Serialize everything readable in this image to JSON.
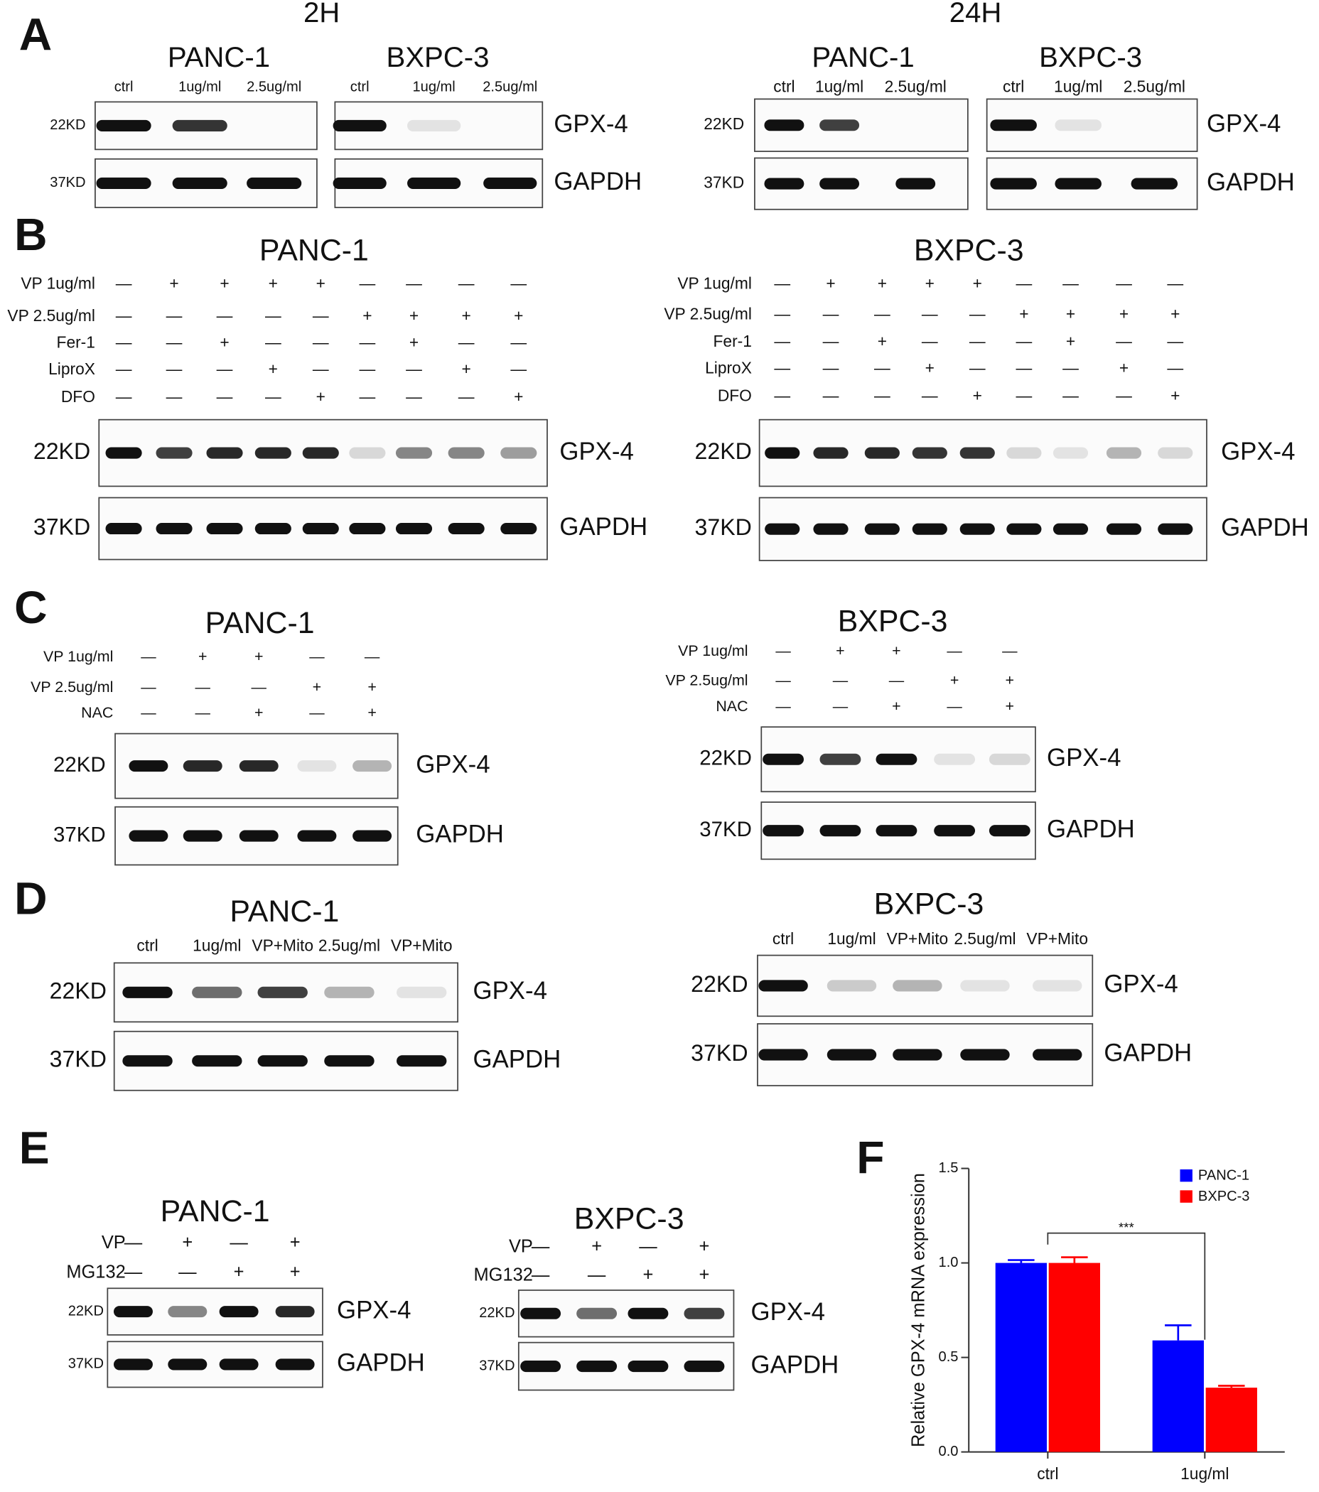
{
  "figure": {
    "panels": [
      {
        "letter": "A",
        "headers": [
          "2H",
          "24H"
        ],
        "blots": [
          {
            "cell": "PANC-1",
            "lanes": [
              "ctrl",
              "1ug/ml",
              "2.5ug/ml"
            ],
            "rows": [
              {
                "kd": "22KD"
              },
              {
                "kd": "37KD"
              }
            ]
          },
          {
            "cell": "BXPC-3",
            "lanes": [
              "ctrl",
              "1ug/ml",
              "2.5ug/ml"
            ],
            "rows": [
              {
                "protein": "GPX-4"
              },
              {
                "protein": "GAPDH"
              }
            ]
          },
          {
            "cell": "PANC-1",
            "lanes": [
              "ctrl",
              "1ug/ml",
              "2.5ug/ml"
            ],
            "rows": [
              {
                "kd": "22KD"
              },
              {
                "kd": "37KD"
              }
            ]
          },
          {
            "cell": "BXPC-3",
            "lanes": [
              "ctrl",
              "1ug/ml",
              "2.5ug/ml"
            ],
            "rows": [
              {
                "protein": "GPX-4"
              },
              {
                "protein": "GAPDH"
              }
            ]
          }
        ]
      },
      {
        "letter": "B",
        "blots": [
          {
            "cell": "PANC-1",
            "conditions": [
              {
                "label": "VP 1ug/ml",
                "signs": [
                  "—",
                  "+",
                  "+",
                  "+",
                  "+",
                  "—",
                  "—",
                  "—",
                  "—"
                ]
              },
              {
                "label": "VP 2.5ug/ml",
                "signs": [
                  "—",
                  "—",
                  "—",
                  "—",
                  "—",
                  "+",
                  "+",
                  "+",
                  "+"
                ]
              },
              {
                "label": "Fer-1",
                "signs": [
                  "—",
                  "—",
                  "+",
                  "—",
                  "—",
                  "—",
                  "+",
                  "—",
                  "—"
                ]
              },
              {
                "label": "LiproX",
                "signs": [
                  "—",
                  "—",
                  "—",
                  "+",
                  "—",
                  "—",
                  "—",
                  "+",
                  "—"
                ]
              },
              {
                "label": "DFO",
                "signs": [
                  "—",
                  "—",
                  "—",
                  "—",
                  "+",
                  "—",
                  "—",
                  "—",
                  "+"
                ]
              }
            ],
            "rows": [
              {
                "kd": "22KD",
                "protein": "GPX-4"
              },
              {
                "kd": "37KD",
                "protein": "GAPDH"
              }
            ]
          },
          {
            "cell": "BXPC-3",
            "conditions": [
              {
                "label": "VP 1ug/ml",
                "signs": [
                  "—",
                  "+",
                  "+",
                  "+",
                  "+",
                  "—",
                  "—",
                  "—",
                  "—"
                ]
              },
              {
                "label": "VP 2.5ug/ml",
                "signs": [
                  "—",
                  "—",
                  "—",
                  "—",
                  "—",
                  "+",
                  "+",
                  "+",
                  "+"
                ]
              },
              {
                "label": "Fer-1",
                "signs": [
                  "—",
                  "—",
                  "+",
                  "—",
                  "—",
                  "—",
                  "+",
                  "—",
                  "—"
                ]
              },
              {
                "label": "LiproX",
                "signs": [
                  "—",
                  "—",
                  "—",
                  "+",
                  "—",
                  "—",
                  "—",
                  "+",
                  "—"
                ]
              },
              {
                "label": "DFO",
                "signs": [
                  "—",
                  "—",
                  "—",
                  "—",
                  "+",
                  "—",
                  "—",
                  "—",
                  "+"
                ]
              }
            ],
            "rows": [
              {
                "kd": "22KD",
                "protein": "GPX-4"
              },
              {
                "kd": "37KD",
                "protein": "GAPDH"
              }
            ]
          }
        ]
      },
      {
        "letter": "C",
        "blots": [
          {
            "cell": "PANC-1",
            "conditions": [
              {
                "label": "VP 1ug/ml",
                "signs": [
                  "—",
                  "+",
                  "+",
                  "—",
                  "—"
                ]
              },
              {
                "label": "VP 2.5ug/ml",
                "signs": [
                  "—",
                  "—",
                  "—",
                  "+",
                  "+"
                ]
              },
              {
                "label": "NAC",
                "signs": [
                  "—",
                  "—",
                  "+",
                  "—",
                  "+"
                ]
              }
            ],
            "rows": [
              {
                "kd": "22KD",
                "protein": "GPX-4"
              },
              {
                "kd": "37KD",
                "protein": "GAPDH"
              }
            ]
          },
          {
            "cell": "BXPC-3",
            "conditions": [
              {
                "label": "VP 1ug/ml",
                "signs": [
                  "—",
                  "+",
                  "+",
                  "—",
                  "—"
                ]
              },
              {
                "label": "VP 2.5ug/ml",
                "signs": [
                  "—",
                  "—",
                  "—",
                  "+",
                  "+"
                ]
              },
              {
                "label": "NAC",
                "signs": [
                  "—",
                  "—",
                  "+",
                  "—",
                  "+"
                ]
              }
            ],
            "rows": [
              {
                "kd": "22KD",
                "protein": "GPX-4"
              },
              {
                "kd": "37KD",
                "protein": "GAPDH"
              }
            ]
          }
        ]
      },
      {
        "letter": "D",
        "blots": [
          {
            "cell": "PANC-1",
            "lanes": [
              "ctrl",
              "1ug/ml",
              "VP+Mito",
              "2.5ug/ml",
              "VP+Mito"
            ],
            "rows": [
              {
                "kd": "22KD",
                "protein": "GPX-4"
              },
              {
                "kd": "37KD",
                "protein": "GAPDH"
              }
            ]
          },
          {
            "cell": "BXPC-3",
            "lanes": [
              "ctrl",
              "1ug/ml",
              "VP+Mito",
              "2.5ug/ml",
              "VP+Mito"
            ],
            "rows": [
              {
                "kd": "22KD",
                "protein": "GPX-4"
              },
              {
                "kd": "37KD",
                "protein": "GAPDH"
              }
            ]
          }
        ]
      },
      {
        "letter": "E",
        "blots": [
          {
            "cell": "PANC-1",
            "conditions": [
              {
                "label": "VP",
                "signs": [
                  "—",
                  "+",
                  "—",
                  "+"
                ]
              },
              {
                "label": "MG132",
                "signs": [
                  "—",
                  "—",
                  "+",
                  "+"
                ]
              }
            ],
            "rows": [
              {
                "kd": "22KD",
                "protein": "GPX-4"
              },
              {
                "kd": "37KD",
                "protein": "GAPDH"
              }
            ]
          },
          {
            "cell": "BXPC-3",
            "conditions": [
              {
                "label": "VP",
                "signs": [
                  "—",
                  "+",
                  "—",
                  "+"
                ]
              },
              {
                "label": "MG132",
                "signs": [
                  "—",
                  "—",
                  "+",
                  "+"
                ]
              }
            ],
            "rows": [
              {
                "kd": "22KD",
                "protein": "GPX-4"
              },
              {
                "kd": "37KD",
                "protein": "GAPDH"
              }
            ]
          }
        ]
      },
      {
        "letter": "F"
      }
    ]
  },
  "chart_data": {
    "type": "bar",
    "y_label": "Relative GPX-4 mRNA expression",
    "categories": [
      "ctrl",
      "1ug/ml"
    ],
    "series": [
      {
        "name": "PANC-1",
        "color": "#0000ff",
        "values": [
          1.0,
          0.59
        ],
        "errors": [
          0.015,
          0.08
        ]
      },
      {
        "name": "BXPC-3",
        "color": "#ff0000",
        "values": [
          1.0,
          0.34
        ],
        "errors": [
          0.03,
          0.01
        ]
      }
    ],
    "ylim": [
      0,
      1.5
    ],
    "yticks": [
      {
        "value": 0,
        "label": "0.0"
      },
      {
        "value": 0.5,
        "label": "0.5"
      },
      {
        "value": 1,
        "label": "1.0"
      },
      {
        "value": 1.5,
        "label": "1.5"
      }
    ],
    "annotation": "***",
    "legend": "upper right"
  }
}
